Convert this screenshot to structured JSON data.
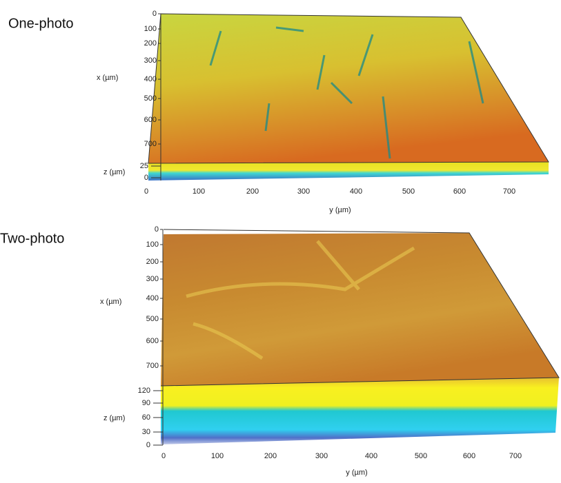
{
  "panels": [
    {
      "label": "One-photo",
      "x_axis_label": "x (µm)",
      "x_ticks": [
        "0",
        "100",
        "200",
        "300",
        "400",
        "500",
        "600",
        "700"
      ],
      "z_axis_label": "z (µm)",
      "z_ticks": [
        "25",
        "0"
      ],
      "y_axis_label": "y (µm)",
      "y_ticks": [
        "0",
        "100",
        "200",
        "300",
        "400",
        "500",
        "600",
        "700"
      ]
    },
    {
      "label": "Two-photo",
      "x_axis_label": "x (µm)",
      "x_ticks": [
        "0",
        "100",
        "200",
        "300",
        "400",
        "500",
        "600",
        "700"
      ],
      "z_axis_label": "z (µm)",
      "z_ticks": [
        "120",
        "90",
        "60",
        "30",
        "0"
      ],
      "y_axis_label": "y (µm)",
      "y_ticks": [
        "0",
        "100",
        "200",
        "300",
        "400",
        "500",
        "600",
        "700"
      ]
    }
  ]
}
